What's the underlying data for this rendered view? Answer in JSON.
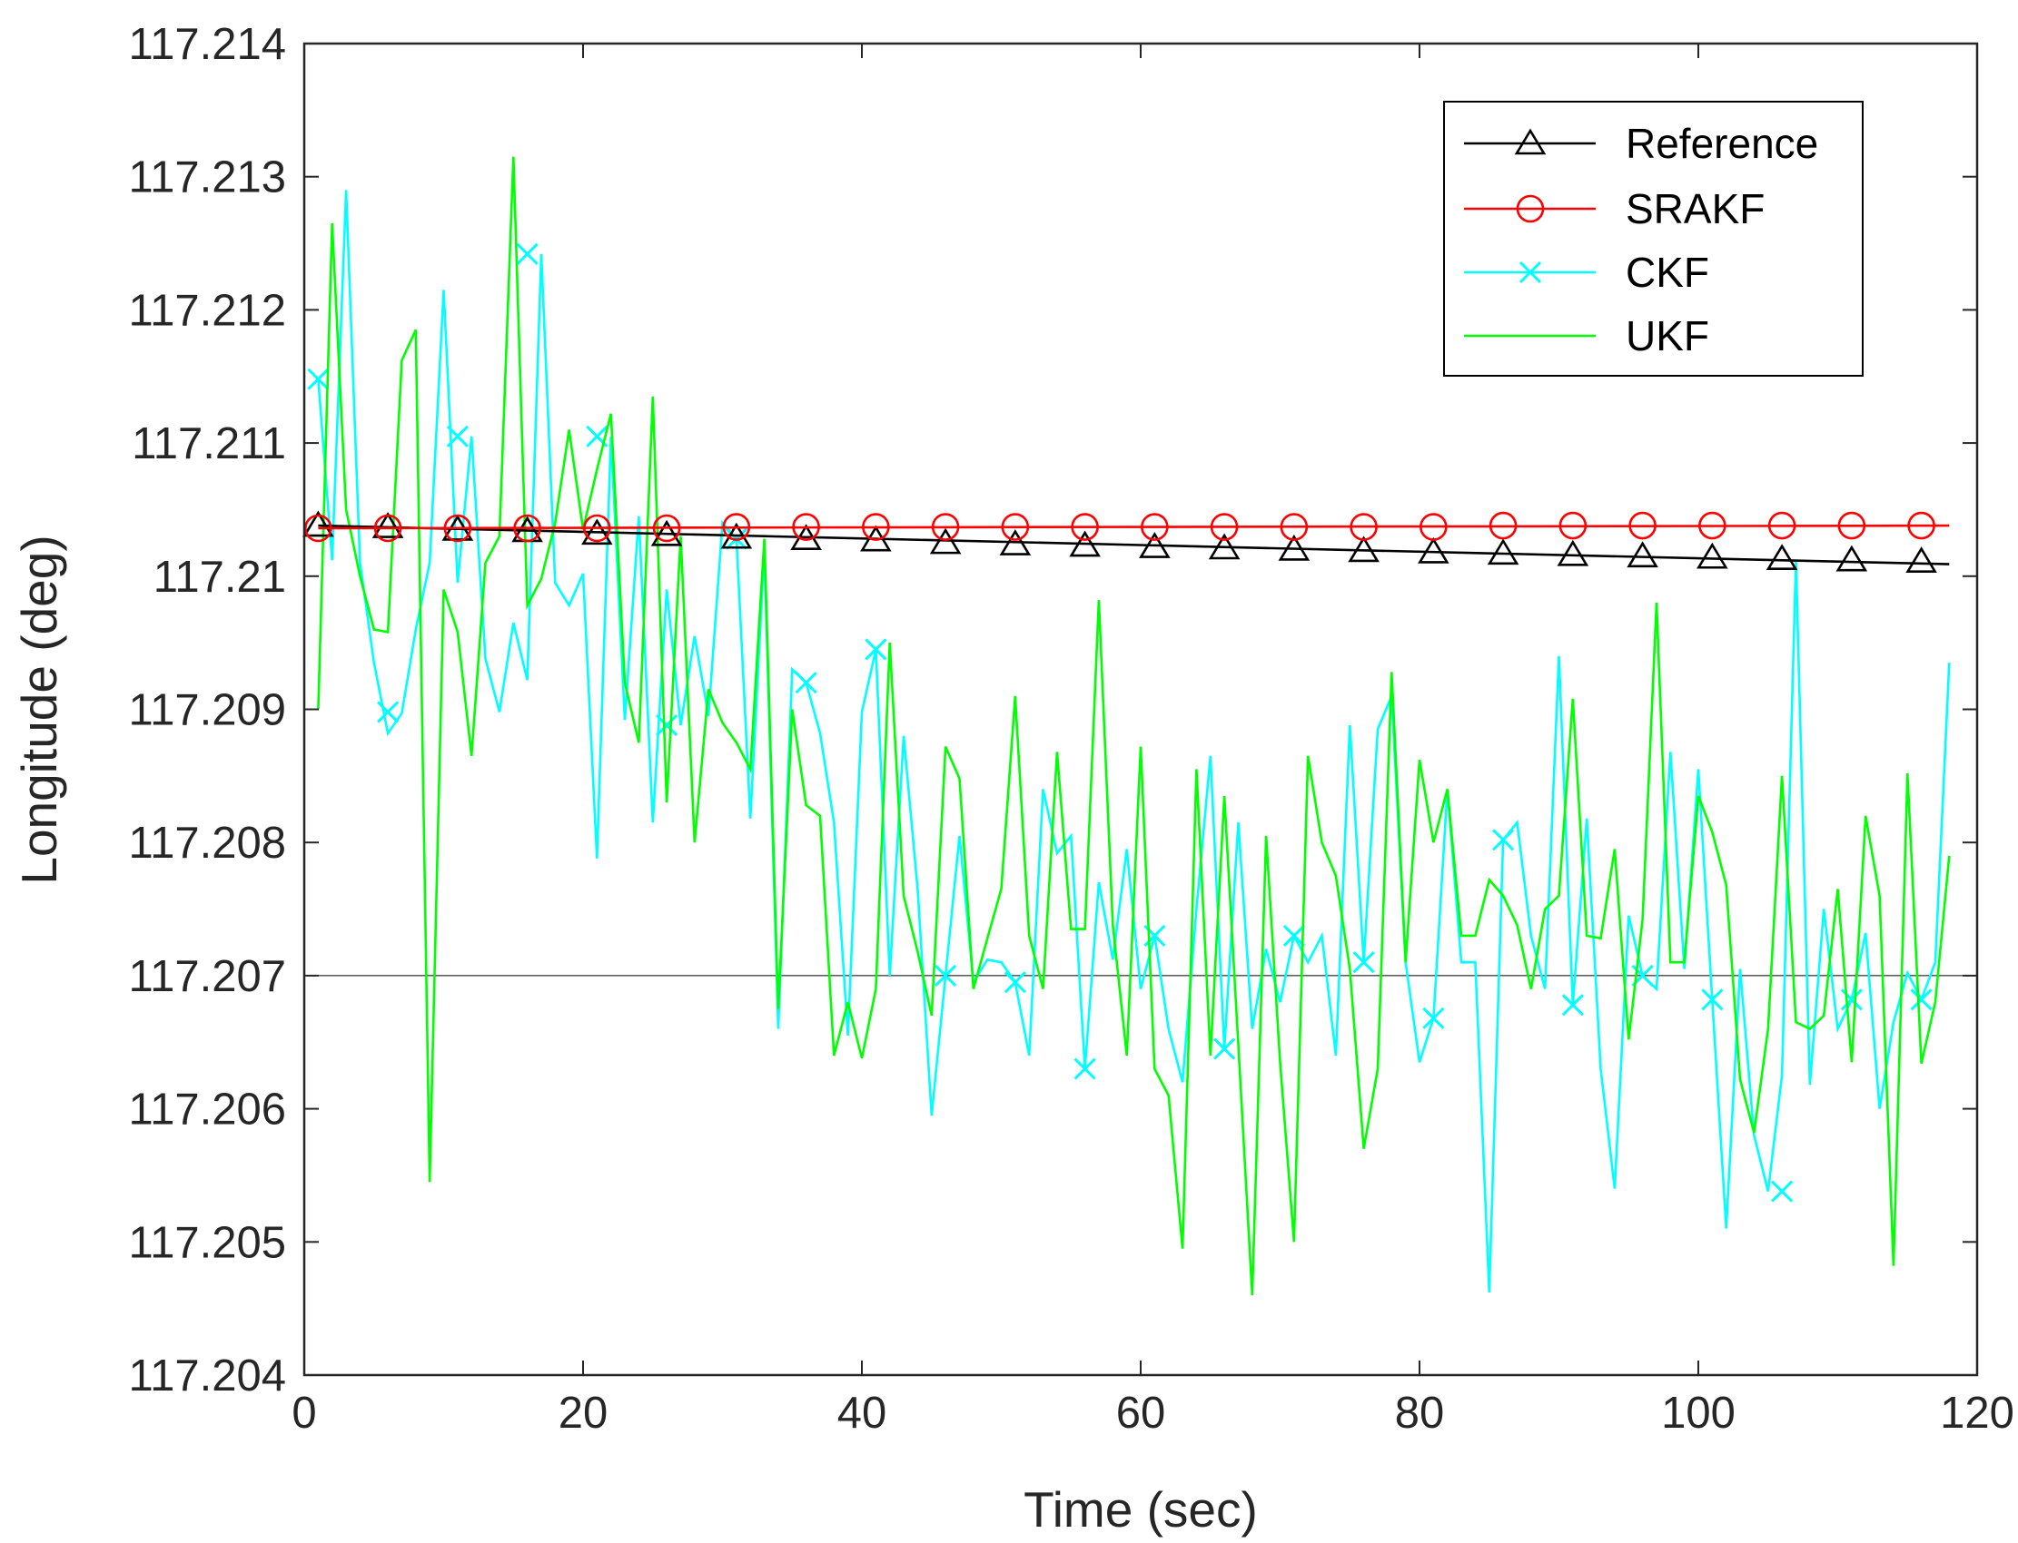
{
  "chart_data": {
    "type": "line",
    "title": "",
    "xlabel": "Time (sec)",
    "ylabel": "Longitude (deg)",
    "xlim": [
      0,
      120
    ],
    "ylim": [
      117.204,
      117.214
    ],
    "xticks": [
      0,
      20,
      40,
      60,
      80,
      100,
      120
    ],
    "xtick_labels": [
      "0",
      "20",
      "40",
      "60",
      "80",
      "100",
      "120"
    ],
    "yticks": [
      117.204,
      117.205,
      117.206,
      117.207,
      117.208,
      117.209,
      117.21,
      117.211,
      117.212,
      117.213,
      117.214
    ],
    "ytick_labels": [
      "117.204",
      "117.205",
      "117.206",
      "117.207",
      "117.208",
      "117.209",
      "117.21",
      "117.211",
      "117.212",
      "117.213",
      "117.214"
    ],
    "grid": false,
    "reference_hline": {
      "value": 117.207,
      "color": "#000000"
    },
    "legend": {
      "placement": "top-right"
    },
    "series": [
      {
        "name": "Reference",
        "color": "#000000",
        "marker": "triangle",
        "x": [
          1,
          118
        ],
        "values": [
          117.21038,
          117.21009
        ],
        "marker_x": [
          1,
          6,
          11,
          16,
          21,
          26,
          31,
          36,
          41,
          46,
          51,
          56,
          61,
          66,
          71,
          76,
          81,
          86,
          91,
          96,
          101,
          106,
          111,
          116
        ],
        "marker_values": [
          117.21038,
          117.21037,
          117.21035,
          117.21034,
          117.21032,
          117.21031,
          117.21029,
          117.21028,
          117.21027,
          117.21025,
          117.21024,
          117.21023,
          117.21022,
          117.21021,
          117.2102,
          117.21019,
          117.21018,
          117.21017,
          117.21016,
          117.21015,
          117.21014,
          117.21013,
          117.21012,
          117.21011
        ]
      },
      {
        "name": "SRAKF",
        "color": "#ff0000",
        "marker": "circle",
        "x": [
          1,
          118
        ],
        "values": [
          117.21036,
          117.21038
        ],
        "marker_x": [
          1,
          6,
          11,
          16,
          21,
          26,
          31,
          36,
          41,
          46,
          51,
          56,
          61,
          66,
          71,
          76,
          81,
          86,
          91,
          96,
          101,
          106,
          111,
          116
        ],
        "marker_values": [
          117.21036,
          117.21036,
          117.21036,
          117.21036,
          117.21036,
          117.21036,
          117.21037,
          117.21037,
          117.21037,
          117.21037,
          117.21037,
          117.21037,
          117.21037,
          117.21037,
          117.21037,
          117.21037,
          117.21037,
          117.21038,
          117.21038,
          117.21038,
          117.21038,
          117.21038,
          117.21038,
          117.21038
        ]
      },
      {
        "name": "CKF",
        "color": "#00ffff",
        "marker": "x",
        "x": [
          1,
          2,
          3,
          4,
          5,
          6,
          7,
          8,
          9,
          10,
          11,
          12,
          13,
          14,
          15,
          16,
          17,
          18,
          19,
          20,
          21,
          22,
          23,
          24,
          25,
          26,
          27,
          28,
          29,
          30,
          31,
          32,
          33,
          34,
          35,
          36,
          37,
          38,
          39,
          40,
          41,
          42,
          43,
          44,
          45,
          46,
          47,
          48,
          49,
          50,
          51,
          52,
          53,
          54,
          55,
          56,
          57,
          58,
          59,
          60,
          61,
          62,
          63,
          64,
          65,
          66,
          67,
          68,
          69,
          70,
          71,
          72,
          73,
          74,
          75,
          76,
          77,
          78,
          79,
          80,
          81,
          82,
          83,
          84,
          85,
          86,
          87,
          88,
          89,
          90,
          91,
          92,
          93,
          94,
          95,
          96,
          97,
          98,
          99,
          100,
          101,
          102,
          103,
          104,
          105,
          106,
          107,
          108,
          109,
          110,
          111,
          112,
          113,
          114,
          115,
          116,
          117,
          118
        ],
        "values": [
          117.21148,
          117.21012,
          117.2129,
          117.2101,
          117.20935,
          117.20882,
          117.20897,
          117.2096,
          117.2101,
          117.21215,
          117.20995,
          117.21105,
          117.20938,
          117.20898,
          117.20965,
          117.20922,
          117.21242,
          117.20995,
          117.20978,
          117.21002,
          117.20788,
          117.21105,
          117.20892,
          117.21045,
          117.20815,
          117.2099,
          117.20888,
          117.20955,
          117.20895,
          117.2104,
          117.21028,
          117.20818,
          117.2102,
          117.2066,
          117.2093,
          117.2092,
          117.20882,
          117.20815,
          117.20655,
          117.20898,
          117.20945,
          117.207,
          117.2088,
          117.20765,
          117.20595,
          117.207,
          117.20805,
          117.20695,
          117.20712,
          117.2071,
          117.20695,
          117.2064,
          117.2084,
          117.20792,
          117.20805,
          117.2063,
          117.2077,
          117.20712,
          117.20795,
          117.2069,
          117.2073,
          117.2066,
          117.2062,
          117.2075,
          117.20865,
          117.20645,
          117.20815,
          117.2066,
          117.2072,
          117.2068,
          117.2073,
          117.2071,
          117.2073,
          117.2064,
          117.20888,
          117.2071,
          117.20885,
          117.2091,
          117.2071,
          117.20635,
          117.20668,
          117.2084,
          117.2071,
          117.2071,
          117.20462,
          117.20802,
          117.20815,
          117.2073,
          117.2069,
          117.2094,
          117.20678,
          117.20818,
          117.2063,
          117.2054,
          117.20745,
          117.207,
          117.2069,
          117.20868,
          117.20705,
          117.20855,
          117.20682,
          117.2051,
          117.20705,
          117.2058,
          117.20538,
          117.20625,
          117.21012,
          117.20618,
          117.2075,
          117.2066,
          117.20682,
          117.20732,
          117.206,
          117.20665,
          117.20702,
          117.20682,
          117.2071,
          117.20935
        ],
        "marker_x": [
          1,
          6,
          11,
          16,
          21,
          26,
          31,
          36,
          41,
          46,
          51,
          56,
          61,
          66,
          71,
          76,
          81,
          86,
          91,
          96,
          101,
          106,
          111,
          116
        ],
        "marker_values": [
          117.21148,
          117.20898,
          117.21105,
          117.21242,
          117.21105,
          117.20888,
          117.21028,
          117.2092,
          117.20945,
          117.207,
          117.20695,
          117.2063,
          117.2073,
          117.20645,
          117.2073,
          117.2071,
          117.20668,
          117.20802,
          117.20678,
          117.207,
          117.20682,
          117.20538,
          117.20682,
          117.20682
        ]
      },
      {
        "name": "UKF",
        "color": "#00ff00",
        "marker": "none",
        "x": [
          1,
          2,
          3,
          4,
          5,
          6,
          7,
          8,
          9,
          10,
          11,
          12,
          13,
          14,
          15,
          16,
          17,
          18,
          19,
          20,
          21,
          22,
          23,
          24,
          25,
          26,
          27,
          28,
          29,
          30,
          31,
          32,
          33,
          34,
          35,
          36,
          37,
          38,
          39,
          40,
          41,
          42,
          43,
          44,
          45,
          46,
          47,
          48,
          49,
          50,
          51,
          52,
          53,
          54,
          55,
          56,
          57,
          58,
          59,
          60,
          61,
          62,
          63,
          64,
          65,
          66,
          67,
          68,
          69,
          70,
          71,
          72,
          73,
          74,
          75,
          76,
          77,
          78,
          79,
          80,
          81,
          82,
          83,
          84,
          85,
          86,
          87,
          88,
          89,
          90,
          91,
          92,
          93,
          94,
          95,
          96,
          97,
          98,
          99,
          100,
          101,
          102,
          103,
          104,
          105,
          106,
          107,
          108,
          109,
          110,
          111,
          112,
          113,
          114,
          115,
          116,
          117,
          118
        ],
        "values": [
          117.209,
          117.21265,
          117.2105,
          117.21,
          117.2096,
          117.20958,
          117.21162,
          117.21185,
          117.20545,
          117.2099,
          117.20958,
          117.20865,
          117.2101,
          117.2103,
          117.21315,
          117.20978,
          117.20998,
          117.2104,
          117.2111,
          117.21035,
          117.2108,
          117.21122,
          117.2092,
          117.20875,
          117.21135,
          117.2083,
          117.2103,
          117.208,
          117.20915,
          117.2089,
          117.20875,
          117.20855,
          117.21028,
          117.20675,
          117.209,
          117.20828,
          117.2082,
          117.2064,
          117.2068,
          117.20638,
          117.2069,
          117.2095,
          117.2076,
          117.20718,
          117.2067,
          117.20872,
          117.20848,
          117.2069,
          117.20728,
          117.20765,
          117.2091,
          117.2073,
          117.2069,
          117.20868,
          117.20735,
          117.20735,
          117.20982,
          117.20738,
          117.2064,
          117.20872,
          117.2063,
          117.2061,
          117.20495,
          117.20855,
          117.2064,
          117.20835,
          117.20648,
          117.2046,
          117.20805,
          117.20635,
          117.205,
          117.20865,
          117.208,
          117.20775,
          117.20705,
          117.2057,
          117.2063,
          117.20928,
          117.2071,
          117.20862,
          117.208,
          117.2084,
          117.2073,
          117.2073,
          117.20772,
          117.2076,
          117.20738,
          117.2069,
          117.2075,
          117.2076,
          117.20908,
          117.2073,
          117.20728,
          117.20795,
          117.20652,
          117.20742,
          117.2098,
          117.2071,
          117.2071,
          117.20835,
          117.20808,
          117.20768,
          117.20622,
          117.20582,
          117.2066,
          117.2085,
          117.20665,
          117.2066,
          117.2067,
          117.20765,
          117.20635,
          117.2082,
          117.2076,
          117.20482,
          117.20852,
          117.20634,
          117.2068,
          117.2079
        ]
      }
    ]
  }
}
